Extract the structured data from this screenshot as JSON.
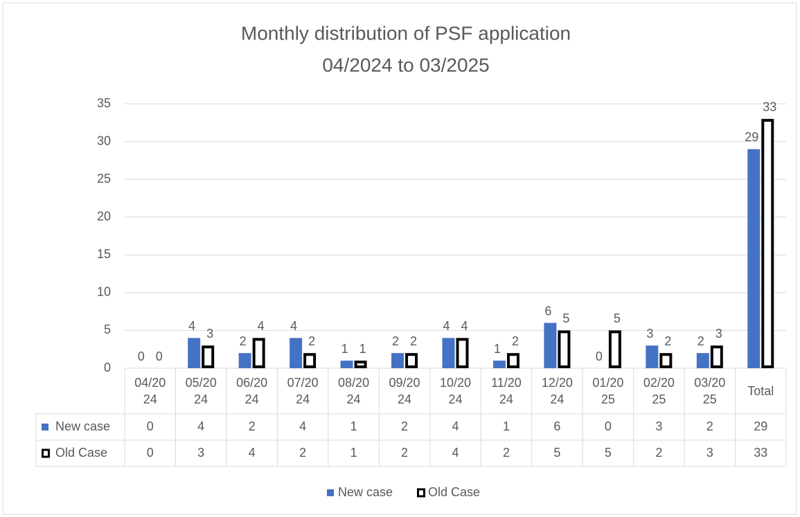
{
  "chart_data": {
    "type": "bar",
    "title": "Monthly distribution of PSF application",
    "subtitle": "04/2024 to 03/2025",
    "categories": [
      "04/2024",
      "05/2024",
      "06/2024",
      "07/2024",
      "08/2024",
      "09/2024",
      "10/2024",
      "11/2024",
      "12/2024",
      "01/2025",
      "02/2025",
      "03/2025",
      "Total"
    ],
    "series": [
      {
        "name": "New case",
        "color": "#4472c4",
        "values": [
          0,
          4,
          2,
          4,
          1,
          2,
          4,
          1,
          6,
          0,
          3,
          2,
          29
        ]
      },
      {
        "name": "Old Case",
        "color": "#000000",
        "values": [
          0,
          3,
          4,
          2,
          1,
          2,
          4,
          2,
          5,
          5,
          2,
          3,
          33
        ]
      }
    ],
    "ylim": [
      0,
      35
    ],
    "yticks": [
      0,
      5,
      10,
      15,
      20,
      25,
      30,
      35
    ],
    "grid": true,
    "legend": "bottom"
  }
}
